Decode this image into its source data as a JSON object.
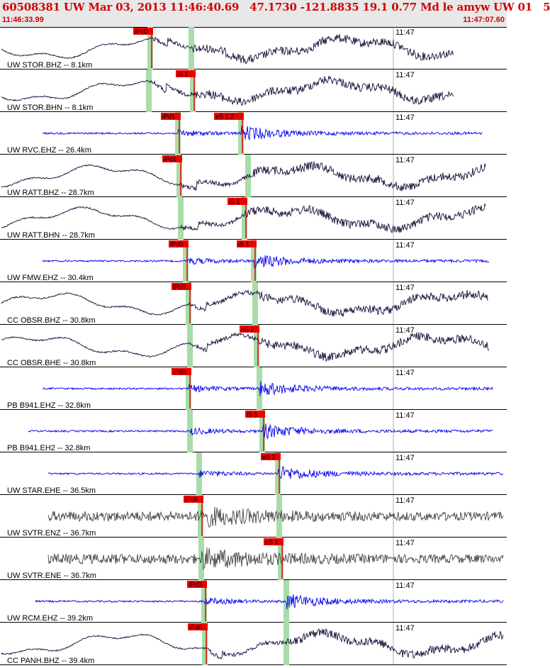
{
  "header": {
    "title": "60508381 UW Mar 03, 2013 11:46:40.69   47.1730 -121.8835 19.1 0.77 Md le amyw UW 01   5",
    "start_time": "11:46:33.99",
    "end_time": "11:47:07.60"
  },
  "tick_label": "11:47",
  "colors": {
    "header_text": "#d00000",
    "pick_box": "#ee0000",
    "pick_window": "#a8dca8",
    "trace_dark": "#1a0a3a",
    "trace_blue": "#0000ee",
    "trace_gray": "#444444"
  },
  "channels": [
    {
      "label": "UW STOR.BHZ -- 8.1km",
      "kind": "lp",
      "color": "dark",
      "picks": [
        {
          "text": "iPcD",
          "marker": "P"
        }
      ]
    },
    {
      "label": "UW STOR.BHN -- 8.1km",
      "kind": "lp",
      "color": "dark",
      "picks": [
        {
          "text": "iS 1",
          "marker": "S"
        }
      ]
    },
    {
      "label": "UW RVC.EHZ -- 26.4km",
      "kind": "hf",
      "color": "blue",
      "picks": [
        {
          "text": "iPd1",
          "marker": "P"
        },
        {
          "text": "eS 1.2",
          "marker": "S"
        }
      ]
    },
    {
      "label": "UW RATT.BHZ -- 28.7km",
      "kind": "lp",
      "color": "dark",
      "picks": [
        {
          "text": "iPd1",
          "marker": "P"
        }
      ]
    },
    {
      "label": "UW RATT.BHN -- 28.7km",
      "kind": "lp",
      "color": "dark",
      "picks": [
        {
          "text": "iS 1",
          "marker": "S"
        }
      ]
    },
    {
      "label": "UW FMW.EHZ -- 30.4km",
      "kind": "hf",
      "color": "blue",
      "picks": [
        {
          "text": "iPd0",
          "marker": "P"
        },
        {
          "text": "iS 1",
          "marker": "S"
        }
      ]
    },
    {
      "label": "CC OBSR.BHZ -- 30.8km",
      "kind": "lp",
      "color": "dark",
      "picks": [
        {
          "text": "iPd0",
          "marker": "P"
        }
      ]
    },
    {
      "label": "CC OBSR.BHE -- 30.8km",
      "kind": "lp",
      "color": "dark",
      "picks": [
        {
          "text": "eS 2",
          "marker": "S"
        }
      ]
    },
    {
      "label": "PB B941.EHZ -- 32.8km",
      "kind": "hf",
      "color": "blue",
      "picks": [
        {
          "text": "iPd0",
          "marker": "P"
        }
      ]
    },
    {
      "label": "PB B941.EH2 -- 32.8km",
      "kind": "hf",
      "color": "blue",
      "picks": [
        {
          "text": "iS 1",
          "marker": "S"
        }
      ]
    },
    {
      "label": "UW STAR.EHE -- 36.5km",
      "kind": "hf",
      "color": "blue",
      "picks": [
        {
          "text": "eS 2",
          "marker": "S"
        }
      ]
    },
    {
      "label": "UW SVTR.ENZ -- 36.7km",
      "kind": "noise",
      "color": "gray",
      "picks": [
        {
          "text": "iPc0",
          "marker": "P"
        }
      ]
    },
    {
      "label": "UW SVTR.ENE -- 36.7km",
      "kind": "noise",
      "color": "gray",
      "picks": [
        {
          "text": "eS 1",
          "marker": "S"
        }
      ]
    },
    {
      "label": "UW RCM.EHZ -- 39.2km",
      "kind": "hf",
      "color": "blue",
      "picks": [
        {
          "text": "iPcD",
          "marker": "P"
        }
      ]
    },
    {
      "label": "CC PANH.BHZ -- 39.4km",
      "kind": "lp",
      "color": "dark",
      "picks": [
        {
          "text": "iPd0",
          "marker": "P"
        }
      ]
    }
  ]
}
